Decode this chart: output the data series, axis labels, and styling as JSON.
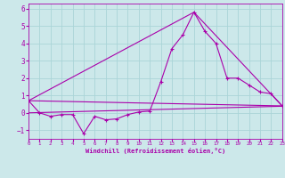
{
  "xlabel": "Windchill (Refroidissement éolien,°C)",
  "bg_color": "#cce8ea",
  "grid_color": "#aad4d8",
  "line_color": "#aa00aa",
  "xlim": [
    0,
    23
  ],
  "ylim": [
    -1.5,
    6.3
  ],
  "yticks": [
    -1,
    0,
    1,
    2,
    3,
    4,
    5,
    6
  ],
  "xticks": [
    0,
    1,
    2,
    3,
    4,
    5,
    6,
    7,
    8,
    9,
    10,
    11,
    12,
    13,
    14,
    15,
    16,
    17,
    18,
    19,
    20,
    21,
    22,
    23
  ],
  "series1_x": [
    0,
    1,
    2,
    3,
    4,
    5,
    6,
    7,
    8,
    9,
    10,
    11,
    12,
    13,
    14,
    15,
    16,
    17,
    18,
    19,
    20,
    21,
    22,
    23
  ],
  "series1_y": [
    0.7,
    0.0,
    -0.2,
    -0.1,
    -0.1,
    -1.2,
    -0.2,
    -0.4,
    -0.35,
    -0.1,
    0.05,
    0.1,
    1.8,
    3.7,
    4.5,
    5.8,
    4.7,
    4.0,
    2.0,
    2.0,
    1.6,
    1.2,
    1.1,
    0.4
  ],
  "series2_x": [
    0,
    23
  ],
  "series2_y": [
    0.7,
    0.4
  ],
  "series3_x": [
    0,
    15,
    23
  ],
  "series3_y": [
    0.7,
    5.8,
    0.4
  ],
  "series4_x": [
    0,
    23
  ],
  "series4_y": [
    0.0,
    0.38
  ]
}
